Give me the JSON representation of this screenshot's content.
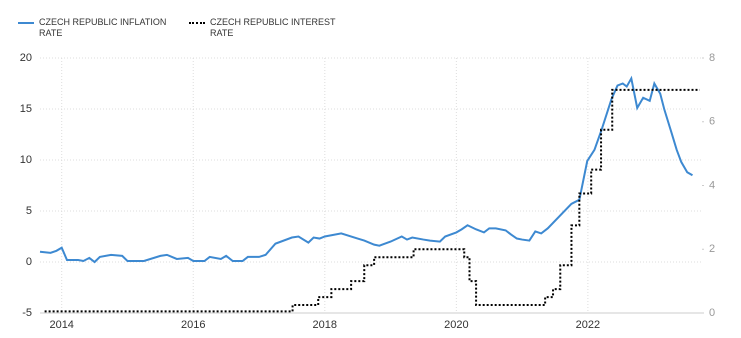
{
  "chart_data": {
    "type": "line",
    "xlim": [
      2013.67,
      2023.75
    ],
    "xticks": [
      2014,
      2016,
      2018,
      2020,
      2022
    ],
    "ylim": [
      -5,
      20
    ],
    "yticks": [
      -5,
      0,
      5,
      10,
      15,
      20
    ],
    "y2lim": [
      0,
      8
    ],
    "y2ticks": [
      0,
      2,
      4,
      6,
      8
    ],
    "grid": true,
    "series": [
      {
        "name": "CZECH REPUBLIC INFLATION RATE",
        "color": "#3d89d1",
        "style": "solid",
        "interpolation": "linear",
        "x": [
          2013.67,
          2013.83,
          2013.92,
          2014.0,
          2014.08,
          2014.25,
          2014.33,
          2014.42,
          2014.5,
          2014.58,
          2014.75,
          2014.92,
          2015.0,
          2015.25,
          2015.5,
          2015.6,
          2015.75,
          2015.92,
          2016.0,
          2016.17,
          2016.25,
          2016.42,
          2016.5,
          2016.6,
          2016.75,
          2016.83,
          2017.0,
          2017.1,
          2017.25,
          2017.5,
          2017.6,
          2017.75,
          2017.83,
          2017.92,
          2018.0,
          2018.25,
          2018.5,
          2018.6,
          2018.75,
          2018.83,
          2019.0,
          2019.17,
          2019.25,
          2019.33,
          2019.5,
          2019.6,
          2019.75,
          2019.83,
          2020.0,
          2020.08,
          2020.17,
          2020.3,
          2020.42,
          2020.5,
          2020.6,
          2020.75,
          2020.83,
          2020.92,
          2021.0,
          2021.11,
          2021.2,
          2021.29,
          2021.39,
          2021.75,
          2021.87,
          2021.99,
          2022.1,
          2022.21,
          2022.36,
          2022.45,
          2022.53,
          2022.59,
          2022.66,
          2022.75,
          2022.84,
          2022.94,
          2023.01,
          2023.1,
          2023.16,
          2023.27,
          2023.35,
          2023.42,
          2023.51,
          2023.59
        ],
        "values": [
          1.0,
          0.9,
          1.1,
          1.4,
          0.2,
          0.2,
          0.1,
          0.4,
          0.0,
          0.5,
          0.7,
          0.6,
          0.1,
          0.1,
          0.6,
          0.7,
          0.3,
          0.4,
          0.1,
          0.1,
          0.5,
          0.3,
          0.6,
          0.1,
          0.1,
          0.5,
          0.5,
          0.7,
          1.8,
          2.4,
          2.5,
          1.9,
          2.4,
          2.3,
          2.5,
          2.8,
          2.3,
          2.1,
          1.7,
          1.6,
          2.0,
          2.5,
          2.2,
          2.4,
          2.2,
          2.1,
          2.0,
          2.5,
          2.9,
          3.2,
          3.6,
          3.2,
          2.9,
          3.3,
          3.3,
          3.1,
          2.7,
          2.3,
          2.2,
          2.1,
          3.0,
          2.8,
          3.3,
          5.7,
          6.1,
          9.9,
          11.0,
          13.0,
          16.0,
          17.3,
          17.5,
          17.2,
          18.0,
          15.1,
          16.1,
          15.8,
          17.5,
          16.5,
          15.0,
          12.7,
          11.0,
          9.8,
          8.8,
          8.5
        ]
      },
      {
        "name": "CZECH REPUBLIC INTEREST RATE",
        "color": "#000000",
        "style": "dotted",
        "interpolation": "step",
        "axis": "y2",
        "x": [
          2013.74,
          2017.51,
          2017.9,
          2018.1,
          2018.4,
          2018.6,
          2018.75,
          2019.35,
          2020.12,
          2020.2,
          2020.3,
          2021.35,
          2021.47,
          2021.58,
          2021.75,
          2021.87,
          2022.05,
          2022.2,
          2022.37,
          2023.7
        ],
        "values": [
          0.05,
          0.25,
          0.5,
          0.75,
          1.0,
          1.5,
          1.75,
          2.0,
          1.75,
          1.0,
          0.25,
          0.5,
          0.75,
          1.5,
          2.75,
          3.75,
          4.5,
          5.75,
          7.0,
          7.0
        ]
      }
    ]
  }
}
